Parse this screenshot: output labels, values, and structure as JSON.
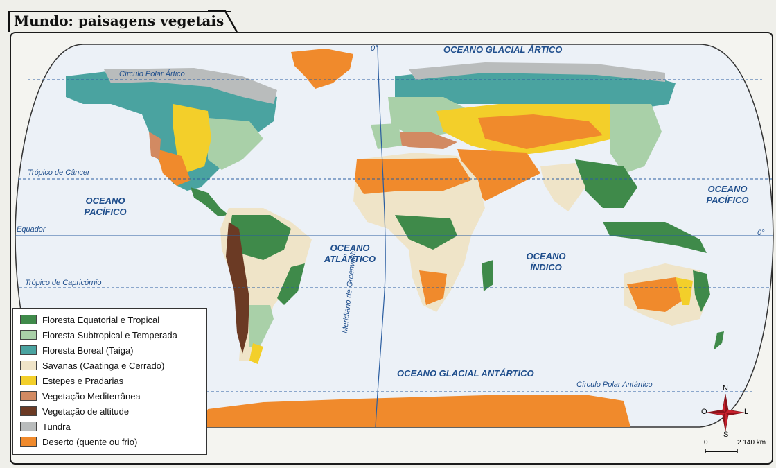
{
  "title": "Mundo: paisagens vegetais",
  "oceans": {
    "glacial_artico": "OCEANO GLACIAL ÁRTICO",
    "pacifico_oeste_1": "OCEANO",
    "pacifico_oeste_2": "PACÍFICO",
    "pacifico_leste_1": "OCEANO",
    "pacifico_leste_2": "PACÍFICO",
    "atlantico_1": "OCEANO",
    "atlantico_2": "ATLÂNTICO",
    "indico_1": "OCEANO",
    "indico_2": "ÍNDICO",
    "glacial_antartico": "OCEANO GLACIAL ANTÁRTICO"
  },
  "lines": {
    "polar_artico": "Círculo Polar Ártico",
    "tropico_cancer": "Trópico de Câncer",
    "equador": "Equador",
    "tropico_capricornio": "Trópico de Capricórnio",
    "polar_antartico": "Círculo Polar Antártico",
    "meridiano": "Meridiano de Greenwich",
    "zero_top": "0°",
    "zero_right": "0°"
  },
  "legend": {
    "items": [
      {
        "label": "Floresta Equatorial e Tropical",
        "color": "#3f8a4a"
      },
      {
        "label": "Floresta Subtropical e Temperada",
        "color": "#a9d0a8"
      },
      {
        "label": "Floresta Boreal (Taiga)",
        "color": "#4aa3a0"
      },
      {
        "label": "Savanas (Caatinga e Cerrado)",
        "color": "#efe4c8"
      },
      {
        "label": "Estepes e Pradarias",
        "color": "#f3cf2a"
      },
      {
        "label": "Vegetação Mediterrânea",
        "color": "#d28a62"
      },
      {
        "label": "Vegetação de altitude",
        "color": "#6b3a24"
      },
      {
        "label": "Tundra",
        "color": "#b9bcbc"
      },
      {
        "label": "Deserto (quente ou frio)",
        "color": "#f08a2c"
      }
    ]
  },
  "compass": {
    "n": "N",
    "s": "S",
    "l": "L",
    "o": "O"
  },
  "scale": {
    "zero": "0",
    "distance": "2 140 km"
  }
}
